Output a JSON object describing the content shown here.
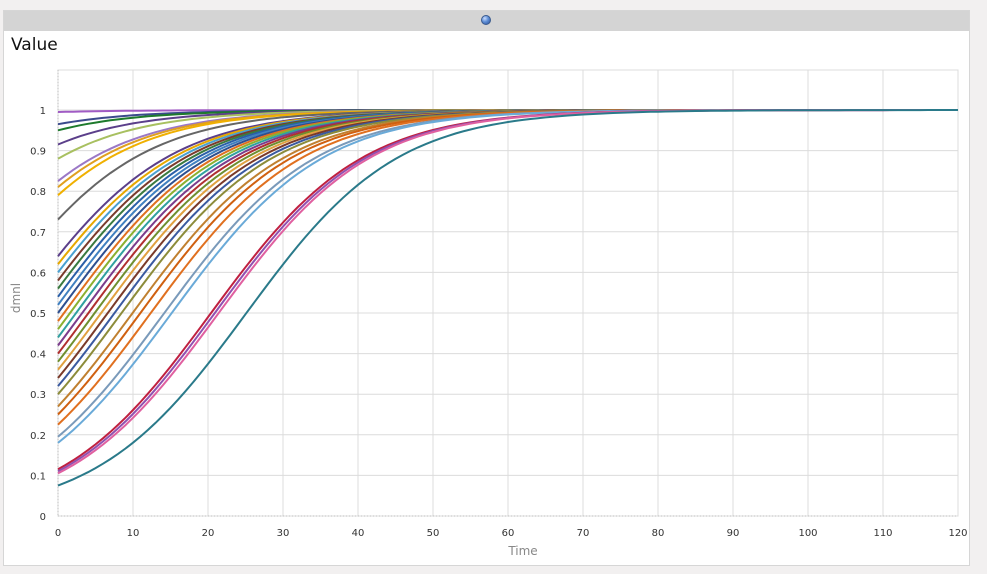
{
  "panel": {
    "title": "Value"
  },
  "chart_data": {
    "type": "line",
    "title": "Value",
    "xlabel": "Time",
    "ylabel": "dmnl",
    "xlim": [
      0,
      120
    ],
    "ylim": [
      0,
      1
    ],
    "xticks": [
      "0",
      "10",
      "20",
      "30",
      "40",
      "50",
      "60",
      "70",
      "80",
      "90",
      "100",
      "110",
      "120"
    ],
    "yticks": [
      "0",
      "0.1",
      "0.2",
      "0.3",
      "0.4",
      "0.5",
      "0.6",
      "0.7",
      "0.8",
      "0.9",
      "1"
    ],
    "grid": true,
    "legend": "none",
    "curve_model": "logistic y(t) = 1 / (1 + (1/y0 - 1) * exp(-r t)), r = 0.1",
    "growth_rate": 0.1,
    "series": [
      {
        "y0": 0.995,
        "color": "#a05bc4"
      },
      {
        "y0": 0.965,
        "color": "#3b4a8c"
      },
      {
        "y0": 0.95,
        "color": "#1e7a2c"
      },
      {
        "y0": 0.915,
        "color": "#5b3f8a"
      },
      {
        "y0": 0.88,
        "color": "#a8c060"
      },
      {
        "y0": 0.825,
        "color": "#9b78c6"
      },
      {
        "y0": 0.81,
        "color": "#e0a020"
      },
      {
        "y0": 0.79,
        "color": "#f0b000"
      },
      {
        "y0": 0.73,
        "color": "#666666"
      },
      {
        "y0": 0.64,
        "color": "#5b3f8a"
      },
      {
        "y0": 0.62,
        "color": "#e6a800"
      },
      {
        "y0": 0.6,
        "color": "#4aa0d0"
      },
      {
        "y0": 0.58,
        "color": "#7a3b2c"
      },
      {
        "y0": 0.56,
        "color": "#3a7a40"
      },
      {
        "y0": 0.54,
        "color": "#2a5fa8"
      },
      {
        "y0": 0.52,
        "color": "#4080c0"
      },
      {
        "y0": 0.5,
        "color": "#2f4f8f"
      },
      {
        "y0": 0.48,
        "color": "#e07020"
      },
      {
        "y0": 0.46,
        "color": "#8ab030"
      },
      {
        "y0": 0.44,
        "color": "#30a0a0"
      },
      {
        "y0": 0.42,
        "color": "#7b3c8c"
      },
      {
        "y0": 0.4,
        "color": "#b03030"
      },
      {
        "y0": 0.38,
        "color": "#6f8f2f"
      },
      {
        "y0": 0.36,
        "color": "#e0a040"
      },
      {
        "y0": 0.34,
        "color": "#7a3a2a"
      },
      {
        "y0": 0.32,
        "color": "#3a5aa0"
      },
      {
        "y0": 0.3,
        "color": "#8c8c3a"
      },
      {
        "y0": 0.27,
        "color": "#c08030"
      },
      {
        "y0": 0.25,
        "color": "#d06010"
      },
      {
        "y0": 0.225,
        "color": "#e07020"
      },
      {
        "y0": 0.195,
        "color": "#7a9aba"
      },
      {
        "y0": 0.18,
        "color": "#6aaad8"
      },
      {
        "y0": 0.115,
        "color": "#c02040"
      },
      {
        "y0": 0.11,
        "color": "#9050b0"
      },
      {
        "y0": 0.105,
        "color": "#e060a0"
      },
      {
        "y0": 0.075,
        "color": "#2a7a8a"
      }
    ]
  }
}
